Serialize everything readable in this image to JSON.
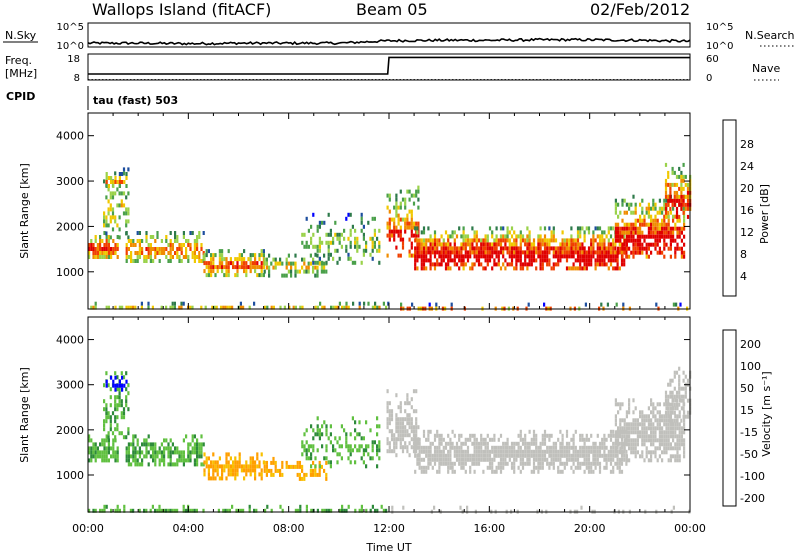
{
  "header": {
    "station": "Wallops Island (fitACF)",
    "beam": "Beam 05",
    "date": "02/Feb/2012"
  },
  "top_panels": {
    "nsky": {
      "label": "N.Sky",
      "ticks": [
        "10^5",
        "10^0"
      ],
      "right_ticks": [
        "10^5",
        "10^0"
      ],
      "right_label": "N.Search"
    },
    "freq": {
      "label_line1": "Freq.",
      "label_line2": "[MHz]",
      "ticks": [
        "18",
        "8"
      ],
      "right_ticks": [
        "60",
        "0"
      ],
      "right_label": "Nave"
    },
    "cpid": {
      "label": "CPID",
      "value": "tau (fast) 503"
    }
  },
  "colors": {
    "power_scale": [
      "#0000ff",
      "#1d4e9e",
      "#2d7a4a",
      "#4aa04a",
      "#9ad24a",
      "#f0c800",
      "#f08c00",
      "#f04000",
      "#e00000"
    ],
    "velocity_scale": [
      "#ff0000",
      "#ff6000",
      "#ff9f00",
      "#f8c000",
      "#c8c8c8",
      "#60c040",
      "#2d8a3a",
      "#1d4aa0",
      "#0000ff"
    ],
    "ground_scatter": "#c0c0bc"
  },
  "chart_data": [
    {
      "type": "line",
      "name": "N.Sky",
      "x": [
        0,
        2,
        4,
        6,
        8,
        10,
        12,
        14,
        16,
        18,
        20,
        22,
        24
      ],
      "y_log10": [
        0.8,
        0.8,
        0.7,
        0.8,
        0.8,
        0.8,
        1.3,
        1.4,
        1.4,
        1.5,
        1.5,
        1.4,
        1.2
      ],
      "ylim_log10": [
        0,
        5
      ]
    },
    {
      "type": "line",
      "name": "Freq",
      "x": [
        0,
        11.95,
        12.0,
        24
      ],
      "y": [
        10.3,
        10.3,
        16.7,
        16.6
      ],
      "ylim": [
        8,
        18
      ],
      "nave_x": [
        0,
        24
      ],
      "nave_y": [
        1,
        1
      ]
    },
    {
      "type": "heatmap",
      "name": "power",
      "ylabel": "Slant Range [km]",
      "xlabel": "Time UT",
      "xlim": [
        0,
        24
      ],
      "ylim": [
        180,
        4500
      ],
      "x_ticks": [
        "00:00",
        "04:00",
        "08:00",
        "12:00",
        "16:00",
        "20:00",
        "00:00"
      ],
      "y_ticks": [
        1000,
        2000,
        3000,
        4000
      ],
      "colorbar_label": "Power [dB]",
      "colorbar_ticks": [
        "4",
        "8",
        "12",
        "16",
        "20",
        "24",
        "28"
      ],
      "colorbar_range": [
        0,
        30
      ]
    },
    {
      "type": "heatmap",
      "name": "velocity",
      "ylabel": "Slant Range [km]",
      "xlabel": "Time UT",
      "xlim": [
        0,
        24
      ],
      "ylim": [
        180,
        4500
      ],
      "x_ticks": [
        "00:00",
        "04:00",
        "08:00",
        "12:00",
        "16:00",
        "20:00",
        "00:00"
      ],
      "y_ticks": [
        1000,
        2000,
        3000,
        4000
      ],
      "colorbar_label": "Velocity [m s⁻¹]",
      "colorbar_ticks": [
        "200",
        "100",
        "50",
        "15",
        "-15",
        "-50",
        "-100",
        "-200"
      ]
    }
  ]
}
